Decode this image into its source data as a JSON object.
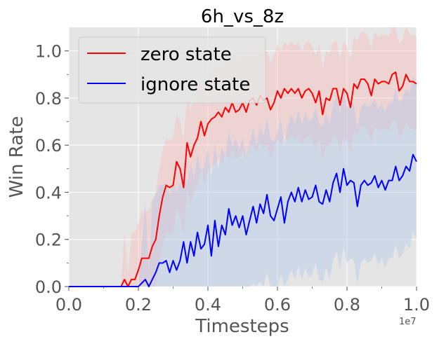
{
  "chart_data": {
    "type": "line",
    "title": "6h_vs_8z",
    "xlabel": "Timesteps",
    "ylabel": "Win Rate",
    "x_scale_label": "1e7",
    "xlim": [
      0.0,
      1.0
    ],
    "ylim": [
      0.0,
      1.1
    ],
    "x_ticks": [
      "0.0",
      "0.2",
      "0.4",
      "0.6",
      "0.8",
      "1.0"
    ],
    "y_ticks": [
      "0.0",
      "0.2",
      "0.4",
      "0.6",
      "0.8",
      "1.0"
    ],
    "grid": true,
    "legend_position": "top-left",
    "x_units_note": "x values are in units of 1e7 timesteps",
    "series": [
      {
        "name": "zero state",
        "color": "#ff0000",
        "band_color": "#ffb3b3",
        "points": [
          [
            0.0,
            0.0
          ],
          [
            0.1,
            0.0
          ],
          [
            0.15,
            0.0
          ],
          [
            0.16,
            0.03
          ],
          [
            0.17,
            0.0
          ],
          [
            0.18,
            0.03
          ],
          [
            0.19,
            0.03
          ],
          [
            0.2,
            0.07
          ],
          [
            0.21,
            0.12
          ],
          [
            0.22,
            0.12
          ],
          [
            0.23,
            0.12
          ],
          [
            0.24,
            0.17
          ],
          [
            0.25,
            0.2
          ],
          [
            0.26,
            0.3
          ],
          [
            0.27,
            0.38
          ],
          [
            0.28,
            0.43
          ],
          [
            0.29,
            0.42
          ],
          [
            0.3,
            0.43
          ],
          [
            0.31,
            0.53
          ],
          [
            0.32,
            0.5
          ],
          [
            0.33,
            0.42
          ],
          [
            0.34,
            0.61
          ],
          [
            0.35,
            0.55
          ],
          [
            0.36,
            0.6
          ],
          [
            0.37,
            0.63
          ],
          [
            0.38,
            0.7
          ],
          [
            0.39,
            0.64
          ],
          [
            0.4,
            0.69
          ],
          [
            0.41,
            0.71
          ],
          [
            0.42,
            0.72
          ],
          [
            0.43,
            0.74
          ],
          [
            0.44,
            0.72
          ],
          [
            0.45,
            0.76
          ],
          [
            0.46,
            0.74
          ],
          [
            0.47,
            0.78
          ],
          [
            0.48,
            0.74
          ],
          [
            0.49,
            0.75
          ],
          [
            0.5,
            0.78
          ],
          [
            0.51,
            0.74
          ],
          [
            0.52,
            0.79
          ],
          [
            0.53,
            0.8
          ],
          [
            0.54,
            0.77
          ],
          [
            0.55,
            0.81
          ],
          [
            0.56,
            0.79
          ],
          [
            0.57,
            0.8
          ],
          [
            0.58,
            0.75
          ],
          [
            0.59,
            0.78
          ],
          [
            0.6,
            0.83
          ],
          [
            0.61,
            0.8
          ],
          [
            0.62,
            0.84
          ],
          [
            0.63,
            0.82
          ],
          [
            0.64,
            0.84
          ],
          [
            0.65,
            0.82
          ],
          [
            0.66,
            0.84
          ],
          [
            0.67,
            0.8
          ],
          [
            0.68,
            0.83
          ],
          [
            0.69,
            0.84
          ],
          [
            0.7,
            0.82
          ],
          [
            0.71,
            0.78
          ],
          [
            0.72,
            0.83
          ],
          [
            0.73,
            0.73
          ],
          [
            0.74,
            0.8
          ],
          [
            0.75,
            0.79
          ],
          [
            0.76,
            0.84
          ],
          [
            0.77,
            0.84
          ],
          [
            0.78,
            0.77
          ],
          [
            0.79,
            0.84
          ],
          [
            0.8,
            0.82
          ],
          [
            0.81,
            0.76
          ],
          [
            0.82,
            0.86
          ],
          [
            0.83,
            0.84
          ],
          [
            0.84,
            0.88
          ],
          [
            0.85,
            0.88
          ],
          [
            0.86,
            0.86
          ],
          [
            0.87,
            0.81
          ],
          [
            0.88,
            0.88
          ],
          [
            0.89,
            0.86
          ],
          [
            0.9,
            0.87
          ],
          [
            0.91,
            0.87
          ],
          [
            0.92,
            0.86
          ],
          [
            0.93,
            0.9
          ],
          [
            0.94,
            0.91
          ],
          [
            0.95,
            0.83
          ],
          [
            0.96,
            0.85
          ],
          [
            0.97,
            0.9
          ],
          [
            0.98,
            0.87
          ],
          [
            0.99,
            0.87
          ],
          [
            1.0,
            0.86
          ]
        ]
      },
      {
        "name": "ignore state",
        "color": "#0000ff",
        "band_color": "#b3c8e6",
        "points": [
          [
            0.0,
            0.0
          ],
          [
            0.2,
            0.0
          ],
          [
            0.22,
            0.03
          ],
          [
            0.23,
            0.0
          ],
          [
            0.24,
            0.03
          ],
          [
            0.25,
            0.06
          ],
          [
            0.26,
            0.1
          ],
          [
            0.27,
            0.1
          ],
          [
            0.28,
            0.11
          ],
          [
            0.29,
            0.06
          ],
          [
            0.3,
            0.11
          ],
          [
            0.31,
            0.07
          ],
          [
            0.32,
            0.11
          ],
          [
            0.33,
            0.19
          ],
          [
            0.34,
            0.1
          ],
          [
            0.35,
            0.19
          ],
          [
            0.36,
            0.13
          ],
          [
            0.37,
            0.23
          ],
          [
            0.38,
            0.16
          ],
          [
            0.39,
            0.18
          ],
          [
            0.4,
            0.26
          ],
          [
            0.41,
            0.13
          ],
          [
            0.42,
            0.28
          ],
          [
            0.43,
            0.17
          ],
          [
            0.44,
            0.26
          ],
          [
            0.45,
            0.22
          ],
          [
            0.46,
            0.33
          ],
          [
            0.47,
            0.26
          ],
          [
            0.48,
            0.3
          ],
          [
            0.49,
            0.25
          ],
          [
            0.5,
            0.3
          ],
          [
            0.51,
            0.22
          ],
          [
            0.52,
            0.28
          ],
          [
            0.53,
            0.34
          ],
          [
            0.54,
            0.27
          ],
          [
            0.55,
            0.35
          ],
          [
            0.56,
            0.31
          ],
          [
            0.57,
            0.39
          ],
          [
            0.58,
            0.3
          ],
          [
            0.59,
            0.28
          ],
          [
            0.6,
            0.33
          ],
          [
            0.61,
            0.38
          ],
          [
            0.62,
            0.27
          ],
          [
            0.63,
            0.36
          ],
          [
            0.64,
            0.4
          ],
          [
            0.65,
            0.36
          ],
          [
            0.66,
            0.42
          ],
          [
            0.67,
            0.36
          ],
          [
            0.68,
            0.41
          ],
          [
            0.69,
            0.37
          ],
          [
            0.7,
            0.38
          ],
          [
            0.71,
            0.43
          ],
          [
            0.72,
            0.36
          ],
          [
            0.73,
            0.35
          ],
          [
            0.74,
            0.41
          ],
          [
            0.75,
            0.36
          ],
          [
            0.76,
            0.44
          ],
          [
            0.77,
            0.48
          ],
          [
            0.78,
            0.4
          ],
          [
            0.79,
            0.5
          ],
          [
            0.8,
            0.43
          ],
          [
            0.81,
            0.45
          ],
          [
            0.82,
            0.44
          ],
          [
            0.83,
            0.34
          ],
          [
            0.84,
            0.43
          ],
          [
            0.85,
            0.45
          ],
          [
            0.86,
            0.43
          ],
          [
            0.87,
            0.44
          ],
          [
            0.88,
            0.47
          ],
          [
            0.89,
            0.42
          ],
          [
            0.9,
            0.45
          ],
          [
            0.91,
            0.41
          ],
          [
            0.92,
            0.45
          ],
          [
            0.93,
            0.45
          ],
          [
            0.94,
            0.51
          ],
          [
            0.95,
            0.45
          ],
          [
            0.96,
            0.47
          ],
          [
            0.97,
            0.51
          ],
          [
            0.98,
            0.49
          ],
          [
            0.99,
            0.56
          ],
          [
            1.0,
            0.53
          ]
        ]
      }
    ]
  }
}
